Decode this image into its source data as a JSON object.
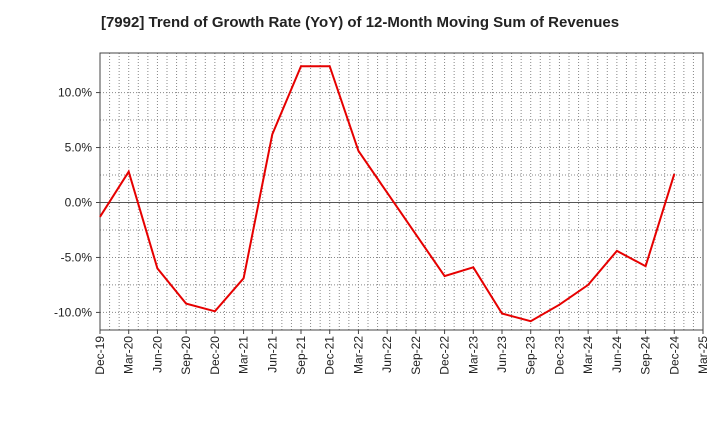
{
  "chart_data": {
    "type": "line",
    "title": "[7992]  Trend of Growth Rate (YoY) of 12-Month Moving Sum of Revenues",
    "xlabel": "",
    "ylabel": "",
    "x_ticks": [
      "Dec-19",
      "Mar-20",
      "Jun-20",
      "Sep-20",
      "Dec-20",
      "Mar-21",
      "Jun-21",
      "Sep-21",
      "Dec-21",
      "Mar-22",
      "Jun-22",
      "Sep-22",
      "Dec-22",
      "Mar-23",
      "Jun-23",
      "Sep-23",
      "Dec-23",
      "Mar-24",
      "Jun-24",
      "Sep-24",
      "Dec-24",
      "Mar-25"
    ],
    "y_ticks": [
      "10.0%",
      "5.0%",
      "0.0%",
      "-5.0%",
      "-10.0%"
    ],
    "y_tick_values": [
      10,
      5,
      0,
      -5,
      -10
    ],
    "ylim": [
      -11.6,
      13.6
    ],
    "grid": true,
    "colors": {
      "line": "#e60000",
      "grid": "#888888",
      "zero_line": "#555555"
    },
    "series": [
      {
        "values": [
          {
            "x": "Dec-19",
            "y": -1.3
          },
          {
            "x": "Mar-20",
            "y": 2.8
          },
          {
            "x": "Jun-20",
            "y": -6.0
          },
          {
            "x": "Sep-20",
            "y": -9.2
          },
          {
            "x": "Dec-20",
            "y": -9.9
          },
          {
            "x": "Mar-21",
            "y": -6.9
          },
          {
            "x": "Jun-21",
            "y": 6.2
          },
          {
            "x": "Sep-21",
            "y": 12.4
          },
          {
            "x": "Dec-21",
            "y": 12.4
          },
          {
            "x": "Mar-22",
            "y": 4.7
          },
          {
            "x": "Jun-22",
            "y": 0.9
          },
          {
            "x": "Sep-22",
            "y": -2.9
          },
          {
            "x": "Dec-22",
            "y": -6.7
          },
          {
            "x": "Mar-23",
            "y": -5.9
          },
          {
            "x": "Jun-23",
            "y": -10.1
          },
          {
            "x": "Sep-23",
            "y": -10.8
          },
          {
            "x": "Dec-23",
            "y": -9.3
          },
          {
            "x": "Mar-24",
            "y": -7.5
          },
          {
            "x": "Jun-24",
            "y": -4.4
          },
          {
            "x": "Sep-24",
            "y": -5.8
          },
          {
            "x": "Dec-24",
            "y": 2.6
          }
        ]
      }
    ]
  }
}
